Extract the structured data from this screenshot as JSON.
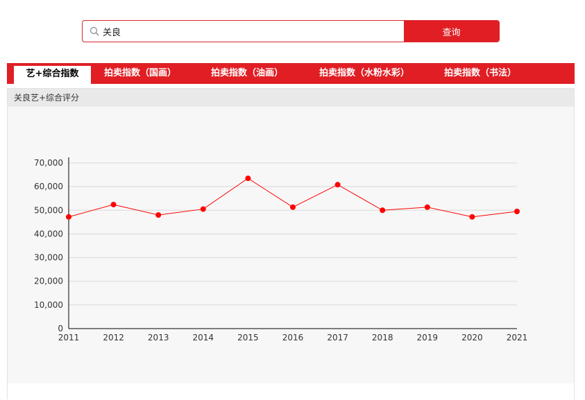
{
  "search": {
    "value": "关良",
    "button_label": "查询",
    "icon": "search-icon"
  },
  "tabs": [
    {
      "label": "艺+综合指数",
      "active": true
    },
    {
      "label": "拍卖指数（国画）",
      "active": false
    },
    {
      "label": "拍卖指数（油画）",
      "active": false
    },
    {
      "label": "拍卖指数（水粉水彩）",
      "active": false
    },
    {
      "label": "拍卖指数（书法）",
      "active": false
    }
  ],
  "panel": {
    "title": "关良艺+综合评分"
  },
  "colors": {
    "accent": "#e01e24",
    "series": "#ff0000",
    "panel_bg": "#f7f7f7",
    "header_bg": "#e9e9e9",
    "grid": "#d9d9d9"
  },
  "chart_data": {
    "type": "line",
    "x": [
      "2011",
      "2012",
      "2013",
      "2014",
      "2015",
      "2016",
      "2017",
      "2018",
      "2019",
      "2020",
      "2021"
    ],
    "series": [
      {
        "values": [
          47200,
          52400,
          48000,
          50500,
          63500,
          51300,
          60800,
          50000,
          51300,
          47200,
          49500
        ]
      }
    ],
    "ylim": [
      0,
      70000
    ],
    "yticks": [
      0,
      10000,
      20000,
      30000,
      40000,
      50000,
      60000,
      70000
    ],
    "ytick_labels": [
      "0",
      "10,000",
      "20,000",
      "30,000",
      "40,000",
      "50,000",
      "60,000",
      "70,000"
    ],
    "grid": true,
    "legend": "none"
  }
}
